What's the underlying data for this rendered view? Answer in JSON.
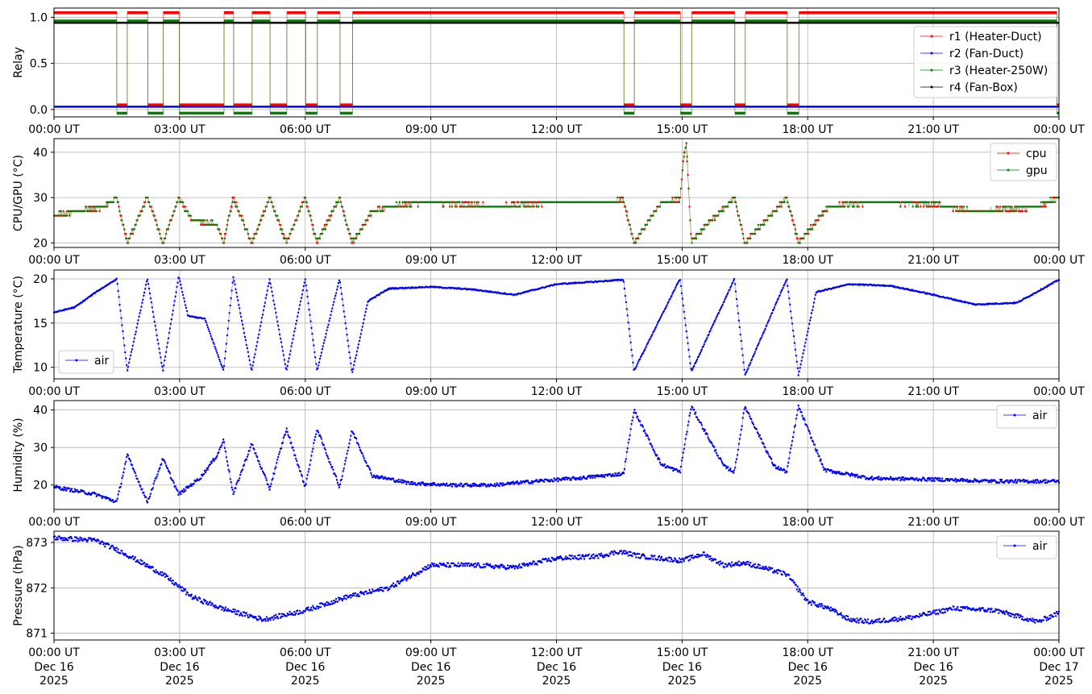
{
  "colors": {
    "red": "#ff0000",
    "blue": "#0000ff",
    "green": "#008000",
    "black": "#000000",
    "grid": "#b0b0b0"
  },
  "x_ticks": [
    "00:00 UT",
    "03:00 UT",
    "06:00 UT",
    "09:00 UT",
    "12:00 UT",
    "15:00 UT",
    "18:00 UT",
    "21:00 UT",
    "00:00 UT"
  ],
  "x_date_labels": [
    [
      "Dec 16",
      "2025"
    ],
    [
      "Dec 16",
      "2025"
    ],
    [
      "Dec 16",
      "2025"
    ],
    [
      "Dec 16",
      "2025"
    ],
    [
      "Dec 16",
      "2025"
    ],
    [
      "Dec 16",
      "2025"
    ],
    [
      "Dec 16",
      "2025"
    ],
    [
      "Dec 16",
      "2025"
    ],
    [
      "Dec 17",
      "2025"
    ]
  ],
  "chart_data": [
    {
      "type": "line",
      "ylabel": "Relay",
      "ylim": [
        -0.08,
        1.1
      ],
      "yticks": [
        "0.0",
        "0.5",
        "1.0"
      ],
      "ytick_values": [
        0,
        0.5,
        1.0
      ],
      "legend_loc": "right",
      "x_range_hours": [
        0,
        24
      ],
      "grid": true,
      "off_intervals_hours": [
        [
          1.5,
          1.75
        ],
        [
          2.23,
          2.6
        ],
        [
          2.98,
          4.05
        ],
        [
          4.28,
          4.72
        ],
        [
          5.15,
          5.55
        ],
        [
          6.0,
          6.28
        ],
        [
          6.82,
          7.12
        ],
        [
          13.6,
          13.85
        ],
        [
          14.95,
          15.22
        ],
        [
          16.25,
          16.5
        ],
        [
          17.5,
          17.78
        ],
        [
          23.95,
          24.0
        ]
      ],
      "series": [
        {
          "name": "r1 (Heater-Duct)",
          "color": "#ff0000",
          "on": 1.05,
          "off": 0.05,
          "pattern": "relay"
        },
        {
          "name": "r2 (Fan-Duct)",
          "color": "#0000ff",
          "constant": 0.03
        },
        {
          "name": "r3 (Heater-250W)",
          "color": "#008000",
          "on": 0.96,
          "off": -0.04,
          "pattern": "relay"
        },
        {
          "name": "r4 (Fan-Box)",
          "color": "#000000",
          "constant": 0.94
        }
      ]
    },
    {
      "type": "line",
      "ylabel": "CPU/GPU (°C)",
      "ylim": [
        19,
        43
      ],
      "yticks": [
        "20",
        "30",
        "40"
      ],
      "ytick_values": [
        20,
        30,
        40
      ],
      "legend_loc": "top-right",
      "grid": true,
      "series": [
        {
          "name": "cpu",
          "color": "#ff0000",
          "x": [
            0,
            1.2,
            1.5,
            1.75,
            2.23,
            2.6,
            2.98,
            3.3,
            3.9,
            4.05,
            4.28,
            4.72,
            5.15,
            5.55,
            6.0,
            6.28,
            6.82,
            7.12,
            7.6,
            8.3,
            9.0,
            10.5,
            12.0,
            13.0,
            13.6,
            13.85,
            14.5,
            14.95,
            15.05,
            15.1,
            15.22,
            16.25,
            16.5,
            17.5,
            17.78,
            18.5,
            19.5,
            21.0,
            22.0,
            23.5,
            24.0
          ],
          "y": [
            26,
            28,
            30,
            20,
            30,
            20,
            30,
            25,
            24,
            20,
            30,
            20,
            30,
            20,
            30,
            20,
            30,
            20,
            27,
            28.5,
            29,
            28,
            29,
            29,
            29.5,
            20,
            29,
            29.5,
            40,
            42,
            20.5,
            30,
            20,
            30,
            20,
            28,
            29,
            28.5,
            27,
            28,
            30
          ]
        },
        {
          "name": "gpu",
          "color": "#008000",
          "x": [
            0,
            1.2,
            1.5,
            1.75,
            2.23,
            2.6,
            2.98,
            3.3,
            3.9,
            4.05,
            4.28,
            4.72,
            5.15,
            5.55,
            6.0,
            6.28,
            6.82,
            7.12,
            7.6,
            8.3,
            9.0,
            10.5,
            12.0,
            13.0,
            13.6,
            13.85,
            14.5,
            14.95,
            15.05,
            15.1,
            15.22,
            16.25,
            16.5,
            17.5,
            17.78,
            18.5,
            19.5,
            21.0,
            22.0,
            23.5,
            24.0
          ],
          "y": [
            26,
            28,
            30,
            20,
            30,
            20,
            30,
            25,
            24,
            20,
            30,
            20,
            30,
            20,
            30,
            20,
            30,
            20,
            27,
            28.5,
            29,
            28,
            29,
            29,
            29.5,
            20,
            29,
            29.5,
            40,
            42,
            20.5,
            30,
            20,
            30,
            20,
            28,
            29,
            28.5,
            27,
            28,
            30
          ]
        }
      ]
    },
    {
      "type": "line",
      "ylabel": "Temperature (°C)",
      "ylim": [
        8.7,
        21
      ],
      "yticks": [
        "10",
        "15",
        "20"
      ],
      "ytick_values": [
        10,
        15,
        20
      ],
      "legend_loc": "lower-left",
      "grid": true,
      "series": [
        {
          "name": "air",
          "color": "#0000ff",
          "x": [
            0,
            0.5,
            1.0,
            1.5,
            1.75,
            2.23,
            2.6,
            2.98,
            3.2,
            3.6,
            4.05,
            4.28,
            4.72,
            5.15,
            5.55,
            6.0,
            6.28,
            6.82,
            7.12,
            7.5,
            8.0,
            9.0,
            10.0,
            11.0,
            12.0,
            13.0,
            13.6,
            13.85,
            14.95,
            15.22,
            16.25,
            16.5,
            17.5,
            17.78,
            18.2,
            19.0,
            20.0,
            21.0,
            22.0,
            23.0,
            24.0
          ],
          "y": [
            16.2,
            16.8,
            18.5,
            20,
            9.6,
            20,
            9.6,
            20.3,
            15.8,
            15.5,
            9.6,
            20.3,
            9.6,
            20,
            9.6,
            20,
            9.6,
            20,
            9.3,
            17.5,
            18.9,
            19.1,
            18.8,
            18.2,
            19.4,
            19.7,
            19.9,
            9.6,
            20,
            9.5,
            20,
            9.1,
            20,
            9.1,
            18.5,
            19.4,
            19.2,
            18.2,
            17.1,
            17.3,
            19.9
          ]
        }
      ]
    },
    {
      "type": "line",
      "ylabel": "Humidity (%)",
      "ylim": [
        13.5,
        42.5
      ],
      "yticks": [
        "20",
        "30",
        "40"
      ],
      "ytick_values": [
        20,
        30,
        40
      ],
      "legend_loc": "top-right",
      "grid": true,
      "series": [
        {
          "name": "air",
          "color": "#0000ff",
          "x": [
            0,
            0.5,
            1.0,
            1.5,
            1.75,
            2.23,
            2.6,
            2.98,
            3.5,
            3.9,
            4.05,
            4.28,
            4.72,
            5.15,
            5.55,
            6.0,
            6.28,
            6.82,
            7.12,
            7.6,
            8.5,
            9.5,
            10.5,
            11.5,
            12.5,
            13.6,
            13.85,
            14.5,
            14.95,
            15.22,
            16.0,
            16.25,
            16.5,
            17.2,
            17.5,
            17.78,
            18.4,
            19.5,
            21.0,
            22.5,
            24.0
          ],
          "y": [
            19.5,
            18.5,
            17.5,
            15.5,
            28,
            15.5,
            27,
            17.5,
            22,
            28,
            32,
            17.5,
            31,
            19,
            35,
            19.5,
            35,
            19.5,
            34.5,
            22.5,
            20.5,
            20,
            20,
            21,
            21.8,
            23,
            40,
            25.5,
            23.5,
            41,
            25,
            23.5,
            41,
            25,
            23.5,
            41,
            24,
            21.8,
            21.5,
            21,
            21
          ]
        }
      ]
    },
    {
      "type": "scatter",
      "ylabel": "Pressure (hPa)",
      "ylim": [
        870.85,
        873.25
      ],
      "yticks": [
        "871",
        "872",
        "873"
      ],
      "ytick_values": [
        871,
        872,
        873
      ],
      "legend_loc": "top-right",
      "grid": true,
      "series": [
        {
          "name": "air",
          "color": "#0000ff",
          "x": [
            0,
            1.0,
            1.6,
            2.6,
            3.3,
            4.0,
            5.0,
            6.0,
            7.0,
            8.0,
            9.0,
            10.0,
            11.0,
            12.0,
            13.0,
            13.5,
            14.0,
            15.0,
            15.5,
            16.0,
            16.5,
            17.5,
            18.0,
            18.5,
            19.0,
            19.5,
            20.5,
            21.5,
            22.5,
            23.5,
            24.0
          ],
          "y": [
            873.1,
            873.05,
            872.8,
            872.3,
            871.8,
            871.55,
            871.3,
            871.5,
            871.8,
            872.0,
            872.5,
            872.5,
            872.45,
            872.65,
            872.7,
            872.8,
            872.7,
            872.6,
            872.75,
            872.5,
            872.55,
            872.3,
            871.7,
            871.55,
            871.3,
            871.25,
            871.35,
            871.55,
            871.5,
            871.25,
            871.45
          ]
        }
      ]
    }
  ]
}
